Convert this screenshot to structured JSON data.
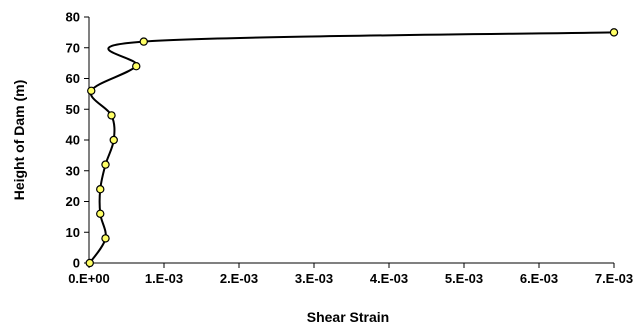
{
  "chart_data": {
    "type": "line",
    "title": "",
    "xlabel": "Shear Strain",
    "ylabel": "Height of Dam (m)",
    "xlim": [
      0,
      0.007
    ],
    "ylim": [
      0,
      80
    ],
    "x_ticks": [
      {
        "value": 0,
        "label": "0.E+00"
      },
      {
        "value": 0.001,
        "label": "1.E-03"
      },
      {
        "value": 0.002,
        "label": "2.E-03"
      },
      {
        "value": 0.003,
        "label": "3.E-03"
      },
      {
        "value": 0.004,
        "label": "4.E-03"
      },
      {
        "value": 0.005,
        "label": "5.E-03"
      },
      {
        "value": 0.006,
        "label": "6.E-03"
      },
      {
        "value": 0.007,
        "label": "7.E-03"
      }
    ],
    "y_ticks": [
      {
        "value": 0,
        "label": "0"
      },
      {
        "value": 10,
        "label": "10"
      },
      {
        "value": 20,
        "label": "20"
      },
      {
        "value": 30,
        "label": "30"
      },
      {
        "value": 40,
        "label": "40"
      },
      {
        "value": 50,
        "label": "50"
      },
      {
        "value": 60,
        "label": "60"
      },
      {
        "value": 70,
        "label": "70"
      },
      {
        "value": 80,
        "label": "80"
      }
    ],
    "grid": false,
    "legend": "none",
    "series": [
      {
        "line_color": "#000000",
        "marker_fill": "#ffff66",
        "marker_stroke": "#000000",
        "points": [
          {
            "x": 1e-05,
            "y": 0
          },
          {
            "x": 0.00022,
            "y": 8
          },
          {
            "x": 0.00015,
            "y": 16
          },
          {
            "x": 0.00015,
            "y": 24
          },
          {
            "x": 0.00022,
            "y": 32
          },
          {
            "x": 0.00033,
            "y": 40
          },
          {
            "x": 0.0003,
            "y": 48
          },
          {
            "x": 3e-05,
            "y": 56
          },
          {
            "x": 0.00063,
            "y": 64
          },
          {
            "x": 0.00073,
            "y": 72
          },
          {
            "x": 0.007,
            "y": 75
          }
        ]
      }
    ]
  }
}
